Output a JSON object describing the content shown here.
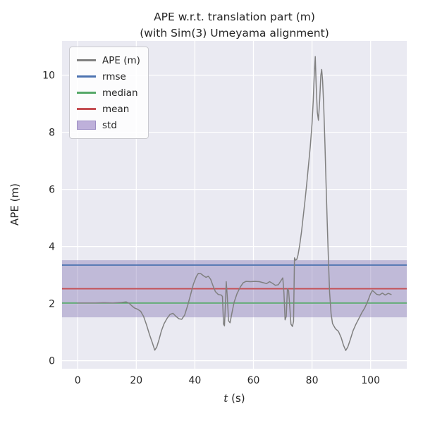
{
  "figure": {
    "background": "#ffffff"
  },
  "chart_data": {
    "type": "line",
    "title": "APE w.r.t. translation part (m)",
    "subtitle": "(with Sim(3) Umeyama alignment)",
    "xlabel": "t (s)",
    "xlabel_math": "t",
    "xlabel_unit": " (s)",
    "ylabel": "APE (m)",
    "xlim": [
      -5.35,
      112.35
    ],
    "ylim": [
      -0.28,
      11.2
    ],
    "xticks": [
      0,
      20,
      40,
      60,
      80,
      100
    ],
    "yticks": [
      0,
      2,
      4,
      6,
      8,
      10
    ],
    "grid": true,
    "legend_position": "upper left",
    "colors": {
      "axes_bg": "#eaeaf2",
      "grid": "#ffffff",
      "text": "#262626",
      "ape_line": "#808080",
      "rmse": "#4c72b0",
      "median": "#55a868",
      "mean": "#c44e52",
      "std_band": "#8172b2"
    },
    "legend": [
      {
        "label": "APE (m)",
        "type": "line",
        "color": "#808080"
      },
      {
        "label": "rmse",
        "type": "line",
        "color": "#4c72b0"
      },
      {
        "label": "median",
        "type": "line",
        "color": "#55a868"
      },
      {
        "label": "mean",
        "type": "line",
        "color": "#c44e52"
      },
      {
        "label": "std",
        "type": "patch",
        "color": "#beb0da"
      }
    ],
    "stat_lines": [
      {
        "name": "rmse",
        "value": 3.35,
        "color": "#4c72b0"
      },
      {
        "name": "median",
        "value": 2.02,
        "color": "#55a868"
      },
      {
        "name": "mean",
        "value": 2.52,
        "color": "#c44e52"
      }
    ],
    "std_band": {
      "low": 1.52,
      "high": 3.52,
      "color": "#8172b2",
      "opacity": 0.4
    },
    "series": [
      {
        "name": "APE (m)",
        "color": "#808080",
        "points": [
          [
            0,
            2.02
          ],
          [
            3,
            2.02
          ],
          [
            6,
            2.02
          ],
          [
            9,
            2.03
          ],
          [
            12,
            2.02
          ],
          [
            15,
            2.04
          ],
          [
            16.5,
            2.06
          ],
          [
            17.5,
            2.02
          ],
          [
            18.5,
            1.92
          ],
          [
            19.5,
            1.84
          ],
          [
            20.5,
            1.8
          ],
          [
            21.5,
            1.73
          ],
          [
            22.5,
            1.55
          ],
          [
            23.5,
            1.25
          ],
          [
            24.5,
            0.92
          ],
          [
            25.5,
            0.62
          ],
          [
            26.3,
            0.37
          ],
          [
            27,
            0.48
          ],
          [
            27.8,
            0.75
          ],
          [
            28.6,
            1.05
          ],
          [
            29.5,
            1.3
          ],
          [
            30.5,
            1.48
          ],
          [
            31.5,
            1.62
          ],
          [
            32.5,
            1.66
          ],
          [
            33.5,
            1.56
          ],
          [
            34.5,
            1.47
          ],
          [
            35.5,
            1.45
          ],
          [
            36.5,
            1.6
          ],
          [
            37.5,
            1.92
          ],
          [
            38.5,
            2.3
          ],
          [
            39.5,
            2.68
          ],
          [
            40.5,
            2.95
          ],
          [
            41.2,
            3.06
          ],
          [
            42,
            3.05
          ],
          [
            43,
            2.97
          ],
          [
            43.8,
            2.92
          ],
          [
            44.6,
            2.96
          ],
          [
            45.4,
            2.85
          ],
          [
            46.2,
            2.62
          ],
          [
            47,
            2.42
          ],
          [
            48,
            2.32
          ],
          [
            49,
            2.3
          ],
          [
            49.4,
            2.25
          ],
          [
            49.8,
            1.28
          ],
          [
            50.1,
            1.22
          ],
          [
            50.4,
            1.9
          ],
          [
            50.7,
            2.77
          ],
          [
            51.1,
            2.2
          ],
          [
            51.5,
            1.4
          ],
          [
            52,
            1.33
          ],
          [
            52.6,
            1.65
          ],
          [
            53.4,
            2.05
          ],
          [
            54.4,
            2.35
          ],
          [
            55.5,
            2.58
          ],
          [
            56.5,
            2.73
          ],
          [
            57.5,
            2.78
          ],
          [
            59,
            2.77
          ],
          [
            60.5,
            2.78
          ],
          [
            62,
            2.77
          ],
          [
            63.5,
            2.73
          ],
          [
            64.5,
            2.7
          ],
          [
            65.5,
            2.77
          ],
          [
            66.5,
            2.71
          ],
          [
            67.5,
            2.64
          ],
          [
            68.5,
            2.66
          ],
          [
            69.5,
            2.82
          ],
          [
            70,
            2.9
          ],
          [
            70.4,
            2.4
          ],
          [
            70.8,
            1.43
          ],
          [
            71.2,
            1.55
          ],
          [
            71.6,
            2.52
          ],
          [
            72,
            2.45
          ],
          [
            72.4,
            1.9
          ],
          [
            72.8,
            1.28
          ],
          [
            73.3,
            1.2
          ],
          [
            73.7,
            1.38
          ],
          [
            74,
            3.6
          ],
          [
            74.4,
            3.52
          ],
          [
            74.8,
            3.55
          ],
          [
            75.2,
            3.7
          ],
          [
            75.8,
            4.05
          ],
          [
            76.4,
            4.5
          ],
          [
            77,
            5.05
          ],
          [
            77.6,
            5.6
          ],
          [
            78.2,
            6.2
          ],
          [
            78.8,
            6.85
          ],
          [
            79.4,
            7.5
          ],
          [
            80,
            8.3
          ],
          [
            80.4,
            9.1
          ],
          [
            80.8,
            10.1
          ],
          [
            81.1,
            10.65
          ],
          [
            81.4,
            9.7
          ],
          [
            81.8,
            8.7
          ],
          [
            82.2,
            8.42
          ],
          [
            82.6,
            9.1
          ],
          [
            83,
            10.0
          ],
          [
            83.3,
            10.2
          ],
          [
            83.6,
            9.8
          ],
          [
            84,
            8.9
          ],
          [
            84.4,
            7.6
          ],
          [
            84.8,
            6.2
          ],
          [
            85.2,
            4.8
          ],
          [
            85.6,
            3.5
          ],
          [
            86,
            2.4
          ],
          [
            86.5,
            1.65
          ],
          [
            87,
            1.3
          ],
          [
            88,
            1.12
          ],
          [
            89,
            1.03
          ],
          [
            90,
            0.8
          ],
          [
            90.7,
            0.55
          ],
          [
            91.5,
            0.36
          ],
          [
            92.2,
            0.48
          ],
          [
            93,
            0.72
          ],
          [
            94,
            1.05
          ],
          [
            95,
            1.28
          ],
          [
            96,
            1.48
          ],
          [
            97,
            1.68
          ],
          [
            98,
            1.85
          ],
          [
            99,
            2.08
          ],
          [
            100,
            2.35
          ],
          [
            100.6,
            2.46
          ],
          [
            101.3,
            2.4
          ],
          [
            102,
            2.33
          ],
          [
            103,
            2.3
          ],
          [
            104,
            2.37
          ],
          [
            105,
            2.3
          ],
          [
            106,
            2.36
          ],
          [
            107,
            2.32
          ]
        ]
      }
    ]
  }
}
